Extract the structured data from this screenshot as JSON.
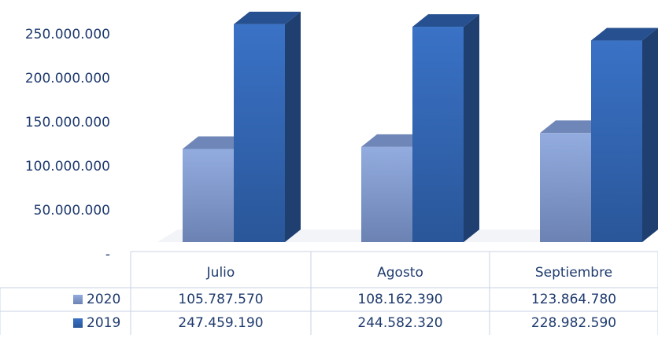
{
  "chart_data": {
    "type": "bar3d",
    "categories": [
      "Julio",
      "Agosto",
      "Septiembre"
    ],
    "series": [
      {
        "name": "2020",
        "color": "#8aa3d6",
        "values": [
          105787570,
          108162390,
          123864780
        ],
        "value_labels": [
          "105.787.570",
          "108.162.390",
          "123.864.780"
        ]
      },
      {
        "name": "2019",
        "color": "#2f65b4",
        "values": [
          247459190,
          244582320,
          228982590
        ],
        "value_labels": [
          "247.459.190",
          "244.582.320",
          "228.982.590"
        ]
      }
    ],
    "ylim": [
      0,
      250000000
    ],
    "yticks": [
      {
        "value": 0,
        "label": "-"
      },
      {
        "value": 50000000,
        "label": "50.000.000"
      },
      {
        "value": 100000000,
        "label": "100.000.000"
      },
      {
        "value": 150000000,
        "label": "150.000.000"
      },
      {
        "value": 200000000,
        "label": "200.000.000"
      },
      {
        "value": 250000000,
        "label": "250.000.000"
      }
    ]
  }
}
